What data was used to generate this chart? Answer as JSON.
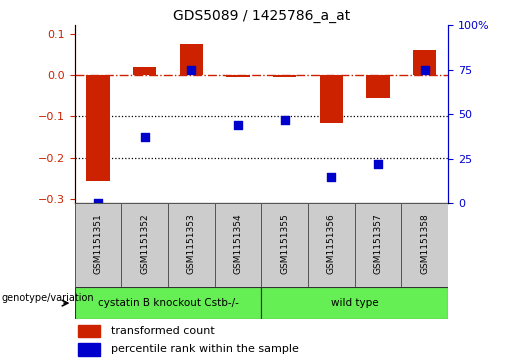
{
  "title": "GDS5089 / 1425786_a_at",
  "samples": [
    "GSM1151351",
    "GSM1151352",
    "GSM1151353",
    "GSM1151354",
    "GSM1151355",
    "GSM1151356",
    "GSM1151357",
    "GSM1151358"
  ],
  "red_bars": [
    -0.255,
    0.02,
    0.075,
    -0.005,
    -0.005,
    -0.115,
    -0.055,
    0.06
  ],
  "blue_pct": [
    0,
    37,
    75,
    44,
    47,
    15,
    22,
    75
  ],
  "ylim_left": [
    -0.31,
    0.12
  ],
  "yticks_left": [
    -0.3,
    -0.2,
    -0.1,
    0.0,
    0.1
  ],
  "yticks_right_pct": [
    0,
    25,
    50,
    75,
    100
  ],
  "yticks_right_labels": [
    "0",
    "25",
    "50",
    "75",
    "100%"
  ],
  "hline_y": 0.0,
  "dotted_lines": [
    -0.1,
    -0.2
  ],
  "bar_color": "#cc2200",
  "dot_color": "#0000cc",
  "bar_width": 0.5,
  "dot_size": 35,
  "legend_red": "transformed count",
  "legend_blue": "percentile rank within the sample",
  "genotype_label": "genotype/variation",
  "group1_label": "cystatin B knockout Cstb-/-",
  "group2_label": "wild type",
  "group1_count": 4,
  "group2_count": 4,
  "group_color": "#66ee55",
  "sample_box_color": "#cccccc",
  "title_fontsize": 10,
  "tick_fontsize": 8,
  "label_fontsize": 7.5,
  "legend_fontsize": 8
}
